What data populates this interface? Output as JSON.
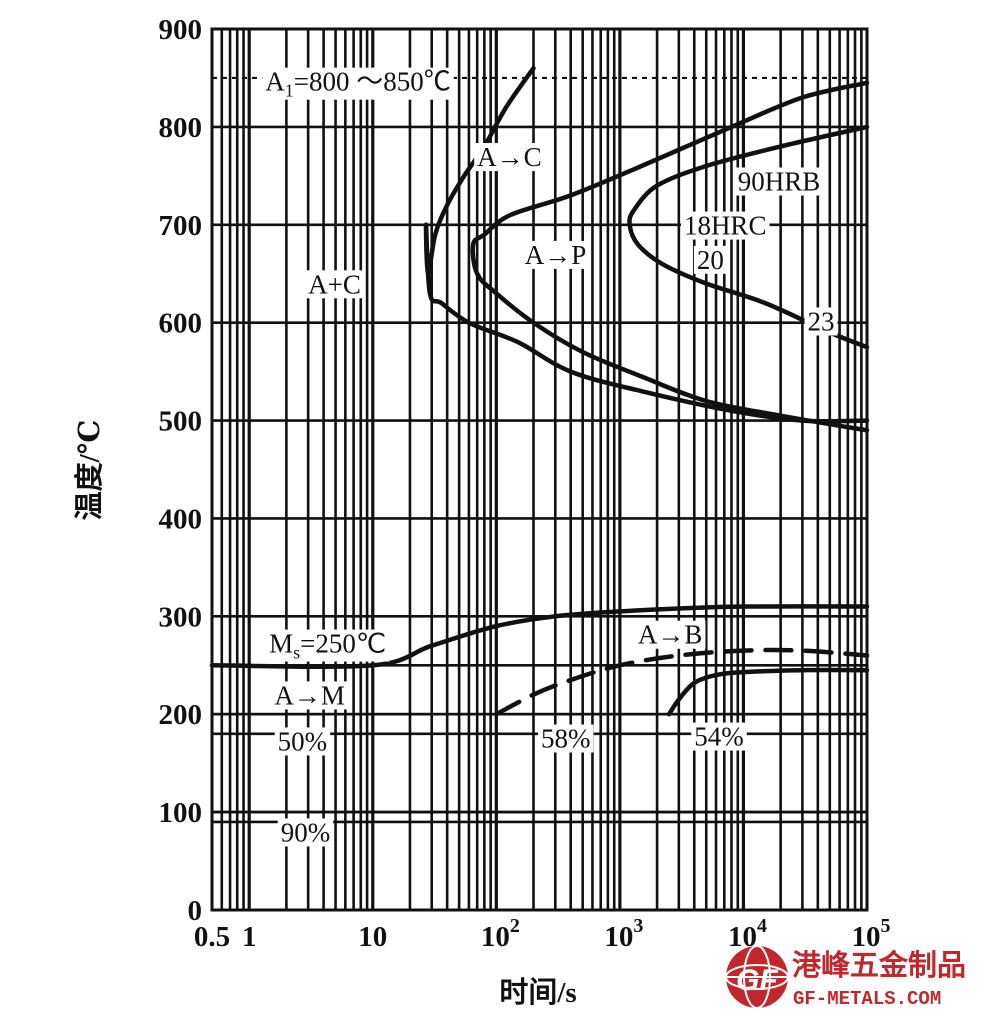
{
  "chart_data": {
    "type": "line",
    "title": "",
    "xlabel": "时间/s",
    "ylabel": "温度/℃",
    "xscale": "log",
    "xlim": [
      0.5,
      100000
    ],
    "ylim": [
      0,
      900
    ],
    "grid": true,
    "x_tick_labels": [
      {
        "x": 0.5,
        "label": "0.5"
      },
      {
        "x": 1,
        "label": "1"
      },
      {
        "x": 10,
        "label": "10"
      },
      {
        "x": 100,
        "base": "10",
        "exp": "2"
      },
      {
        "x": 1000,
        "base": "10",
        "exp": "3"
      },
      {
        "x": 10000,
        "base": "10",
        "exp": "4"
      },
      {
        "x": 100000,
        "base": "10",
        "exp": "5"
      }
    ],
    "y_ticks": [
      0,
      100,
      200,
      300,
      400,
      500,
      600,
      700,
      800,
      900
    ],
    "reference_lines": {
      "solid": [
        250,
        200,
        180,
        100,
        90
      ],
      "dashed": [
        850
      ]
    },
    "series": [
      {
        "style": "solid",
        "x": [
          200,
          120,
          80,
          55,
          40,
          32,
          28,
          27,
          29,
          36,
          60,
          150,
          400,
          1500,
          8000,
          30000,
          100000
        ],
        "y": [
          860,
          820,
          780,
          750,
          720,
          690,
          650,
          700,
          630,
          620,
          600,
          580,
          550,
          530,
          510,
          500,
          500
        ]
      },
      {
        "style": "solid",
        "x": [
          100000,
          30000,
          8000,
          1500,
          400,
          130,
          80,
          65,
          70,
          100,
          200,
          500,
          1500,
          5000,
          20000,
          100000
        ],
        "y": [
          845,
          830,
          800,
          760,
          730,
          710,
          690,
          680,
          650,
          630,
          600,
          570,
          545,
          520,
          505,
          490
        ]
      },
      {
        "style": "solid",
        "x": [
          100000,
          20000,
          5000,
          2000,
          1300,
          1200,
          1400,
          2200,
          5000,
          15000,
          50000,
          100000
        ],
        "y": [
          800,
          780,
          760,
          740,
          715,
          700,
          680,
          660,
          640,
          620,
          590,
          575
        ]
      },
      {
        "style": "solid",
        "x": [
          0.5,
          10,
          30,
          100,
          300,
          1000,
          3000,
          10000,
          100000
        ],
        "y": [
          250,
          250,
          270,
          290,
          300,
          305,
          308,
          310,
          310
        ]
      },
      {
        "style": "dashed",
        "x": [
          100,
          200,
          400,
          1000,
          3000,
          10000,
          30000,
          100000
        ],
        "y": [
          200,
          220,
          235,
          250,
          260,
          265,
          265,
          260
        ]
      },
      {
        "style": "solid",
        "x": [
          2500,
          3000,
          4000,
          6000,
          10000,
          30000,
          100000
        ],
        "y": [
          200,
          215,
          232,
          240,
          243,
          245,
          245
        ]
      }
    ],
    "annotations": [
      {
        "x": 1.35,
        "y": 837,
        "label": "A",
        "sub": "1",
        "suffix": "=800 ～850℃"
      },
      {
        "x": 70,
        "y": 760,
        "label": "A→C"
      },
      {
        "x": 3.0,
        "y": 630,
        "label": "A+C"
      },
      {
        "x": 170,
        "y": 660,
        "label": "A→P"
      },
      {
        "x": 9000,
        "y": 735,
        "label": "90HRB"
      },
      {
        "x": 3300,
        "y": 690,
        "label": "18HRC"
      },
      {
        "x": 4200,
        "y": 655,
        "label": "20"
      },
      {
        "x": 33000,
        "y": 592,
        "label": "23"
      },
      {
        "x": 1.45,
        "y": 263,
        "label": "M",
        "sub": "s",
        "suffix": "=250℃"
      },
      {
        "x": 1.6,
        "y": 210,
        "label": "A→M"
      },
      {
        "x": 1.7,
        "y": 163,
        "label": "50%"
      },
      {
        "x": 1.8,
        "y": 70,
        "label": "90%"
      },
      {
        "x": 230,
        "y": 166,
        "label": "58%"
      },
      {
        "x": 4000,
        "y": 168,
        "label": "54%"
      },
      {
        "x": 1400,
        "y": 272,
        "label": "A→B"
      }
    ]
  },
  "watermark": {
    "text_cn": "港峰五金制品",
    "text_en": "GF-METALS.COM",
    "logo_text": "GF"
  }
}
